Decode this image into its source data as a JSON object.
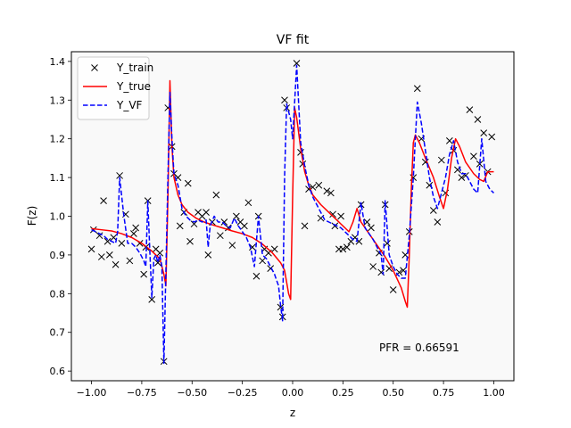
{
  "chart_data": {
    "type": "line",
    "title": "VF fit",
    "xlabel": "z",
    "ylabel": "F(z)",
    "xlim": [
      -1.1,
      1.1
    ],
    "ylim": [
      0.575,
      1.425
    ],
    "xticks": [
      -1.0,
      -0.75,
      -0.5,
      -0.25,
      0.0,
      0.25,
      0.5,
      0.75,
      1.0
    ],
    "xtick_labels": [
      "−1.00",
      "−0.75",
      "−0.50",
      "−0.25",
      "0.00",
      "0.25",
      "0.50",
      "0.75",
      "1.00"
    ],
    "yticks": [
      0.6,
      0.7,
      0.8,
      0.9,
      1.0,
      1.1,
      1.2,
      1.3,
      1.4
    ],
    "ytick_labels": [
      "0.6",
      "0.7",
      "0.8",
      "0.9",
      "1.0",
      "1.1",
      "1.2",
      "1.3",
      "1.4"
    ],
    "grid": false,
    "legend_position": "top-left",
    "background": "#f9f9f9",
    "annotation": "PFR = 0.66591",
    "series": [
      {
        "name": "Y_train",
        "kind": "scatter",
        "marker": "x",
        "color": "#000000",
        "points": [
          [
            -1.0,
            0.915
          ],
          [
            -0.99,
            0.965
          ],
          [
            -0.96,
            0.95
          ],
          [
            -0.95,
            0.895
          ],
          [
            -0.94,
            1.04
          ],
          [
            -0.92,
            0.935
          ],
          [
            -0.91,
            0.9
          ],
          [
            -0.89,
            0.945
          ],
          [
            -0.88,
            0.875
          ],
          [
            -0.86,
            1.105
          ],
          [
            -0.85,
            0.93
          ],
          [
            -0.83,
            1.005
          ],
          [
            -0.81,
            0.885
          ],
          [
            -0.79,
            0.955
          ],
          [
            -0.78,
            0.97
          ],
          [
            -0.76,
            0.93
          ],
          [
            -0.74,
            0.85
          ],
          [
            -0.73,
            0.92
          ],
          [
            -0.72,
            1.04
          ],
          [
            -0.7,
            0.785
          ],
          [
            -0.68,
            0.915
          ],
          [
            -0.67,
            0.88
          ],
          [
            -0.66,
            0.905
          ],
          [
            -0.64,
            0.625
          ],
          [
            -0.62,
            1.28
          ],
          [
            -0.6,
            1.18
          ],
          [
            -0.59,
            1.11
          ],
          [
            -0.57,
            1.1
          ],
          [
            -0.56,
            0.975
          ],
          [
            -0.54,
            1.01
          ],
          [
            -0.52,
            1.085
          ],
          [
            -0.51,
            0.935
          ],
          [
            -0.49,
            0.98
          ],
          [
            -0.47,
            1.01
          ],
          [
            -0.45,
            1.0
          ],
          [
            -0.43,
            1.01
          ],
          [
            -0.42,
            0.9
          ],
          [
            -0.4,
            0.985
          ],
          [
            -0.38,
            1.055
          ],
          [
            -0.36,
            0.95
          ],
          [
            -0.34,
            0.985
          ],
          [
            -0.32,
            0.97
          ],
          [
            -0.3,
            0.925
          ],
          [
            -0.28,
            1.0
          ],
          [
            -0.26,
            0.985
          ],
          [
            -0.24,
            0.975
          ],
          [
            -0.22,
            1.035
          ],
          [
            -0.2,
            0.92
          ],
          [
            -0.18,
            0.845
          ],
          [
            -0.17,
            1.0
          ],
          [
            -0.15,
            0.885
          ],
          [
            -0.14,
            0.915
          ],
          [
            -0.12,
            0.905
          ],
          [
            -0.11,
            0.865
          ],
          [
            -0.09,
            0.915
          ],
          [
            -0.06,
            0.765
          ],
          [
            -0.05,
            0.74
          ],
          [
            -0.04,
            1.3
          ],
          [
            -0.03,
            1.28
          ],
          [
            0.02,
            1.395
          ],
          [
            0.04,
            1.165
          ],
          [
            0.05,
            1.135
          ],
          [
            0.06,
            0.975
          ],
          [
            0.08,
            1.07
          ],
          [
            0.1,
            1.075
          ],
          [
            0.13,
            1.08
          ],
          [
            0.14,
            0.995
          ],
          [
            0.17,
            1.065
          ],
          [
            0.19,
            1.06
          ],
          [
            0.2,
            1.005
          ],
          [
            0.21,
            0.975
          ],
          [
            0.23,
            0.915
          ],
          [
            0.24,
            1.0
          ],
          [
            0.25,
            0.915
          ],
          [
            0.27,
            0.92
          ],
          [
            0.29,
            0.935
          ],
          [
            0.31,
            0.945
          ],
          [
            0.33,
            0.935
          ],
          [
            0.34,
            1.03
          ],
          [
            0.37,
            0.985
          ],
          [
            0.39,
            0.97
          ],
          [
            0.4,
            0.87
          ],
          [
            0.43,
            0.905
          ],
          [
            0.44,
            0.855
          ],
          [
            0.46,
            1.03
          ],
          [
            0.47,
            0.93
          ],
          [
            0.48,
            0.865
          ],
          [
            0.5,
            0.81
          ],
          [
            0.53,
            0.855
          ],
          [
            0.55,
            0.86
          ],
          [
            0.56,
            0.9
          ],
          [
            0.58,
            0.96
          ],
          [
            0.6,
            1.1
          ],
          [
            0.62,
            1.33
          ],
          [
            0.64,
            1.2
          ],
          [
            0.66,
            1.14
          ],
          [
            0.68,
            1.08
          ],
          [
            0.7,
            1.015
          ],
          [
            0.72,
            0.985
          ],
          [
            0.74,
            1.145
          ],
          [
            0.76,
            1.06
          ],
          [
            0.78,
            1.195
          ],
          [
            0.8,
            1.17
          ],
          [
            0.82,
            1.12
          ],
          [
            0.84,
            1.1
          ],
          [
            0.86,
            1.105
          ],
          [
            0.88,
            1.275
          ],
          [
            0.9,
            1.155
          ],
          [
            0.92,
            1.25
          ],
          [
            0.93,
            1.135
          ],
          [
            0.95,
            1.215
          ],
          [
            0.97,
            1.115
          ],
          [
            0.99,
            1.205
          ]
        ]
      },
      {
        "name": "Y_true",
        "kind": "line",
        "style": "solid",
        "color": "#ff0000",
        "points": [
          [
            -1.0,
            0.968
          ],
          [
            -0.95,
            0.965
          ],
          [
            -0.9,
            0.962
          ],
          [
            -0.85,
            0.955
          ],
          [
            -0.8,
            0.945
          ],
          [
            -0.75,
            0.93
          ],
          [
            -0.7,
            0.91
          ],
          [
            -0.68,
            0.9
          ],
          [
            -0.66,
            0.89
          ],
          [
            -0.65,
            0.87
          ],
          [
            -0.64,
            0.85
          ],
          [
            -0.63,
            0.82
          ],
          [
            -0.62,
            1.05
          ],
          [
            -0.61,
            1.35
          ],
          [
            -0.6,
            1.18
          ],
          [
            -0.59,
            1.1
          ],
          [
            -0.57,
            1.055
          ],
          [
            -0.55,
            1.03
          ],
          [
            -0.52,
            1.01
          ],
          [
            -0.48,
            0.995
          ],
          [
            -0.44,
            0.985
          ],
          [
            -0.4,
            0.978
          ],
          [
            -0.35,
            0.97
          ],
          [
            -0.3,
            0.962
          ],
          [
            -0.25,
            0.955
          ],
          [
            -0.2,
            0.945
          ],
          [
            -0.15,
            0.928
          ],
          [
            -0.1,
            0.905
          ],
          [
            -0.06,
            0.88
          ],
          [
            -0.04,
            0.86
          ],
          [
            -0.02,
            0.8
          ],
          [
            -0.01,
            0.785
          ],
          [
            0.0,
            1.05
          ],
          [
            0.01,
            1.28
          ],
          [
            0.02,
            1.255
          ],
          [
            0.04,
            1.175
          ],
          [
            0.06,
            1.115
          ],
          [
            0.08,
            1.08
          ],
          [
            0.1,
            1.055
          ],
          [
            0.14,
            1.03
          ],
          [
            0.18,
            1.01
          ],
          [
            0.22,
            0.99
          ],
          [
            0.26,
            0.97
          ],
          [
            0.28,
            0.96
          ],
          [
            0.3,
            0.985
          ],
          [
            0.32,
            1.02
          ],
          [
            0.34,
            0.985
          ],
          [
            0.38,
            0.955
          ],
          [
            0.42,
            0.925
          ],
          [
            0.46,
            0.895
          ],
          [
            0.5,
            0.86
          ],
          [
            0.54,
            0.815
          ],
          [
            0.56,
            0.78
          ],
          [
            0.57,
            0.765
          ],
          [
            0.58,
            0.9
          ],
          [
            0.59,
            1.07
          ],
          [
            0.6,
            1.19
          ],
          [
            0.61,
            1.21
          ],
          [
            0.63,
            1.19
          ],
          [
            0.66,
            1.15
          ],
          [
            0.7,
            1.1
          ],
          [
            0.73,
            1.05
          ],
          [
            0.75,
            1.02
          ],
          [
            0.77,
            1.07
          ],
          [
            0.79,
            1.15
          ],
          [
            0.81,
            1.2
          ],
          [
            0.83,
            1.18
          ],
          [
            0.86,
            1.14
          ],
          [
            0.9,
            1.11
          ],
          [
            0.93,
            1.095
          ],
          [
            0.95,
            1.09
          ],
          [
            0.97,
            1.115
          ],
          [
            1.0,
            1.115
          ]
        ]
      },
      {
        "name": "Y_VF",
        "kind": "line",
        "style": "dashed",
        "color": "#0000ff",
        "points": [
          [
            -1.0,
            0.965
          ],
          [
            -0.98,
            0.96
          ],
          [
            -0.96,
            0.955
          ],
          [
            -0.94,
            0.95
          ],
          [
            -0.92,
            0.94
          ],
          [
            -0.9,
            0.935
          ],
          [
            -0.88,
            0.93
          ],
          [
            -0.87,
            0.96
          ],
          [
            -0.86,
            1.1
          ],
          [
            -0.84,
            1.005
          ],
          [
            -0.82,
            0.93
          ],
          [
            -0.8,
            0.93
          ],
          [
            -0.78,
            0.92
          ],
          [
            -0.76,
            0.905
          ],
          [
            -0.74,
            0.885
          ],
          [
            -0.73,
            0.87
          ],
          [
            -0.72,
            1.04
          ],
          [
            -0.71,
            0.91
          ],
          [
            -0.7,
            0.79
          ],
          [
            -0.69,
            0.89
          ],
          [
            -0.68,
            0.9
          ],
          [
            -0.67,
            0.88
          ],
          [
            -0.66,
            0.9
          ],
          [
            -0.65,
            0.87
          ],
          [
            -0.64,
            0.62
          ],
          [
            -0.63,
            0.86
          ],
          [
            -0.62,
            1.1
          ],
          [
            -0.61,
            1.32
          ],
          [
            -0.6,
            1.2
          ],
          [
            -0.59,
            1.11
          ],
          [
            -0.57,
            1.08
          ],
          [
            -0.55,
            1.02
          ],
          [
            -0.53,
            1.0
          ],
          [
            -0.51,
            0.99
          ],
          [
            -0.49,
            0.985
          ],
          [
            -0.47,
            0.99
          ],
          [
            -0.45,
            0.985
          ],
          [
            -0.43,
            0.99
          ],
          [
            -0.42,
            0.92
          ],
          [
            -0.41,
            0.975
          ],
          [
            -0.39,
            1.0
          ],
          [
            -0.37,
            0.985
          ],
          [
            -0.35,
            0.985
          ],
          [
            -0.33,
            0.975
          ],
          [
            -0.31,
            0.97
          ],
          [
            -0.29,
            0.995
          ],
          [
            -0.27,
            0.975
          ],
          [
            -0.25,
            0.96
          ],
          [
            -0.23,
            0.945
          ],
          [
            -0.21,
            0.92
          ],
          [
            -0.19,
            0.87
          ],
          [
            -0.17,
            1.0
          ],
          [
            -0.15,
            0.9
          ],
          [
            -0.13,
            0.89
          ],
          [
            -0.11,
            0.87
          ],
          [
            -0.09,
            0.85
          ],
          [
            -0.07,
            0.82
          ],
          [
            -0.06,
            0.77
          ],
          [
            -0.05,
            0.73
          ],
          [
            -0.04,
            1.1
          ],
          [
            -0.03,
            1.29
          ],
          [
            -0.01,
            1.25
          ],
          [
            0.0,
            1.2
          ],
          [
            0.02,
            1.39
          ],
          [
            0.04,
            1.19
          ],
          [
            0.06,
            1.13
          ],
          [
            0.08,
            1.08
          ],
          [
            0.1,
            1.05
          ],
          [
            0.12,
            1.03
          ],
          [
            0.14,
            1.01
          ],
          [
            0.16,
            0.99
          ],
          [
            0.18,
            0.985
          ],
          [
            0.2,
            0.98
          ],
          [
            0.22,
            0.975
          ],
          [
            0.24,
            0.97
          ],
          [
            0.26,
            0.96
          ],
          [
            0.28,
            0.95
          ],
          [
            0.3,
            0.94
          ],
          [
            0.32,
            0.935
          ],
          [
            0.34,
            1.035
          ],
          [
            0.36,
            0.97
          ],
          [
            0.38,
            0.955
          ],
          [
            0.4,
            0.94
          ],
          [
            0.42,
            0.92
          ],
          [
            0.44,
            0.9
          ],
          [
            0.45,
            0.85
          ],
          [
            0.46,
            1.04
          ],
          [
            0.48,
            0.9
          ],
          [
            0.5,
            0.87
          ],
          [
            0.52,
            0.85
          ],
          [
            0.54,
            0.84
          ],
          [
            0.56,
            0.84
          ],
          [
            0.58,
            0.95
          ],
          [
            0.6,
            1.1
          ],
          [
            0.61,
            1.2
          ],
          [
            0.62,
            1.295
          ],
          [
            0.64,
            1.24
          ],
          [
            0.66,
            1.17
          ],
          [
            0.68,
            1.1
          ],
          [
            0.7,
            1.05
          ],
          [
            0.72,
            1.02
          ],
          [
            0.74,
            1.06
          ],
          [
            0.76,
            1.1
          ],
          [
            0.78,
            1.16
          ],
          [
            0.8,
            1.195
          ],
          [
            0.82,
            1.14
          ],
          [
            0.84,
            1.11
          ],
          [
            0.86,
            1.11
          ],
          [
            0.88,
            1.09
          ],
          [
            0.9,
            1.07
          ],
          [
            0.92,
            1.06
          ],
          [
            0.94,
            1.2
          ],
          [
            0.96,
            1.09
          ],
          [
            0.98,
            1.07
          ],
          [
            1.0,
            1.06
          ]
        ]
      }
    ]
  }
}
